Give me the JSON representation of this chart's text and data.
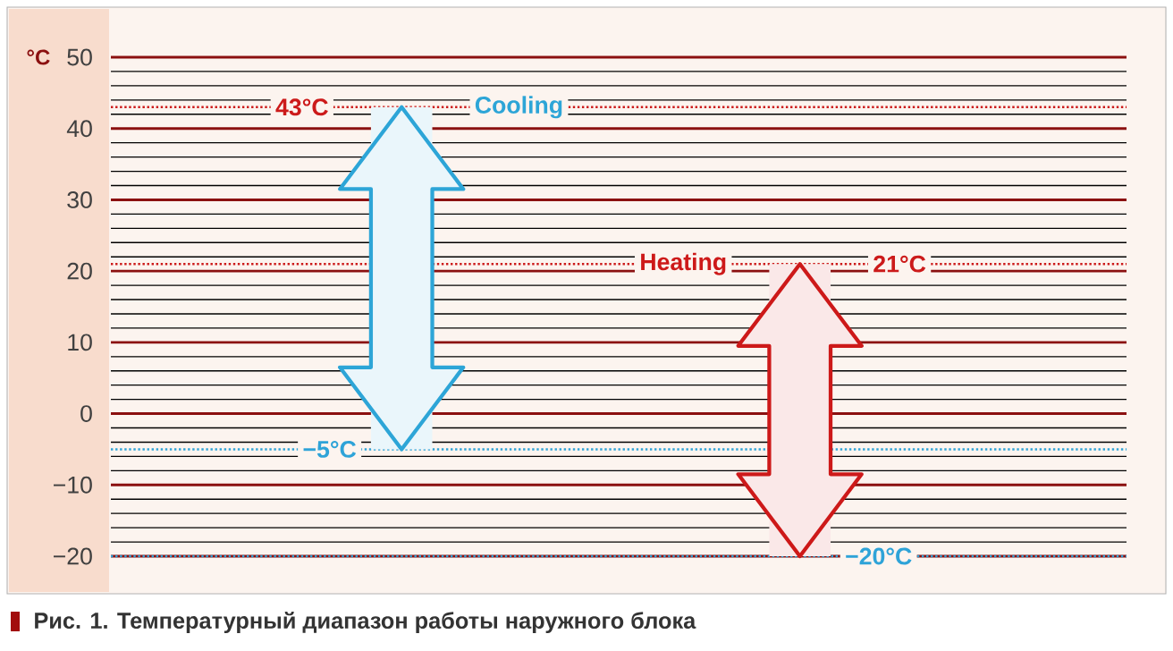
{
  "chart_data": {
    "type": "bar",
    "ylabel": "°C",
    "categories": [
      null,
      null
    ],
    "base": [
      -5,
      -20
    ],
    "values": [
      48,
      41
    ],
    "colors": [
      "#eaf6fb",
      "#fae8e8"
    ],
    "ylim": [
      -20,
      50
    ],
    "yticks": [
      {
        "value": -20,
        "label": "−20"
      },
      {
        "value": -10,
        "label": "−10"
      },
      0,
      10,
      20,
      30,
      40,
      50
    ],
    "grid": "y",
    "tick_labels": "y",
    "ref_lines": [
      {
        "axis": "y",
        "value": 43,
        "label": "43°C",
        "color": "#cc1a1a",
        "line_style": "dotted"
      },
      {
        "axis": "y",
        "value": -5,
        "label": "−5°C",
        "color": "#2ea3d8",
        "line_style": "dotted"
      },
      {
        "axis": "y",
        "value": 21,
        "label": "21°C",
        "color": "#cc1a1a",
        "line_style": "dotted"
      },
      {
        "axis": "y",
        "value": -20,
        "label": "−20°C",
        "color": "#2ea3d8",
        "line_style": "dotted"
      }
    ],
    "annotations": [
      {
        "text": "Cooling",
        "y": 43
      },
      {
        "text": "Heating",
        "y": 21
      },
      "Рис. 1. Температурный диапазон работы наружного блока"
    ]
  }
}
